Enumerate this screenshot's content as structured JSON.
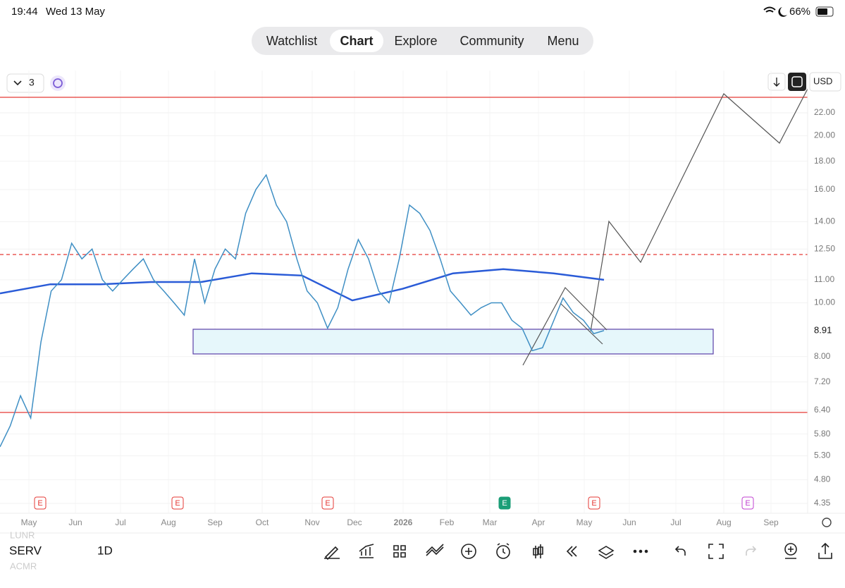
{
  "status_bar": {
    "time": "19:44",
    "date": "Wed 13 May",
    "battery": "66%"
  },
  "tabs": [
    "Watchlist",
    "Chart",
    "Explore",
    "Community",
    "Menu"
  ],
  "active_tab": 1,
  "toolbar": {
    "layout_count": "3",
    "currency": "USD"
  },
  "chart": {
    "log_scale": true,
    "ylim": [
      4.35,
      22
    ],
    "yticks": [
      {
        "value": 22,
        "label": "22.00"
      },
      {
        "value": 20,
        "label": "20.00"
      },
      {
        "value": 18,
        "label": "18.00"
      },
      {
        "value": 16,
        "label": "16.00"
      },
      {
        "value": 14,
        "label": "14.00"
      },
      {
        "value": 12.5,
        "label": "12.50"
      },
      {
        "value": 11,
        "label": "11.00"
      },
      {
        "value": 10,
        "label": "10.00"
      },
      {
        "value": 8,
        "label": "8.00"
      },
      {
        "value": 7.2,
        "label": "7.20"
      },
      {
        "value": 6.4,
        "label": "6.40"
      },
      {
        "value": 5.8,
        "label": "5.80"
      },
      {
        "value": 5.3,
        "label": "5.30"
      },
      {
        "value": 4.8,
        "label": "4.80"
      },
      4.35
    ],
    "last_price": 8.91,
    "closes": [
      5.5,
      6.0,
      6.8,
      6.2,
      8.5,
      10.5,
      11.0,
      12.8,
      12.0,
      12.5,
      11.0,
      10.5,
      11.0,
      11.5,
      12.0,
      11.0,
      10.5,
      10.0,
      9.5,
      12.0,
      10.0,
      11.5,
      12.5,
      12.0,
      14.5,
      16.0,
      17.0,
      15.0,
      14.0,
      12.0,
      10.5,
      10.0,
      9.0,
      9.8,
      11.5,
      13.0,
      12.0,
      10.5,
      10.0,
      12.0,
      15.0,
      14.5,
      13.5,
      12.0,
      10.5,
      10.0,
      9.5,
      9.8,
      10.0,
      10.0,
      9.3,
      9.0,
      8.2,
      8.3,
      9.2,
      10.2,
      9.6,
      9.3,
      8.8,
      8.91
    ],
    "ma": [
      10.4,
      10.8,
      10.8,
      10.9,
      10.9,
      11.3,
      11.2,
      10.1,
      10.6,
      11.3,
      11.5,
      11.3,
      11.0
    ],
    "time_labels": [
      "May",
      "Jun",
      "Jul",
      "Aug",
      "Sep",
      "Oct",
      "Nov",
      "Dec",
      "2026",
      "Feb",
      "Mar",
      "Apr",
      "May",
      "Jun",
      "Jul",
      "Aug",
      "Sep"
    ],
    "earnings_label": "E"
  },
  "bottom": {
    "symbol": "SERV",
    "interval": "1D",
    "watchlist": [
      "LUNR",
      "ACMR"
    ]
  }
}
